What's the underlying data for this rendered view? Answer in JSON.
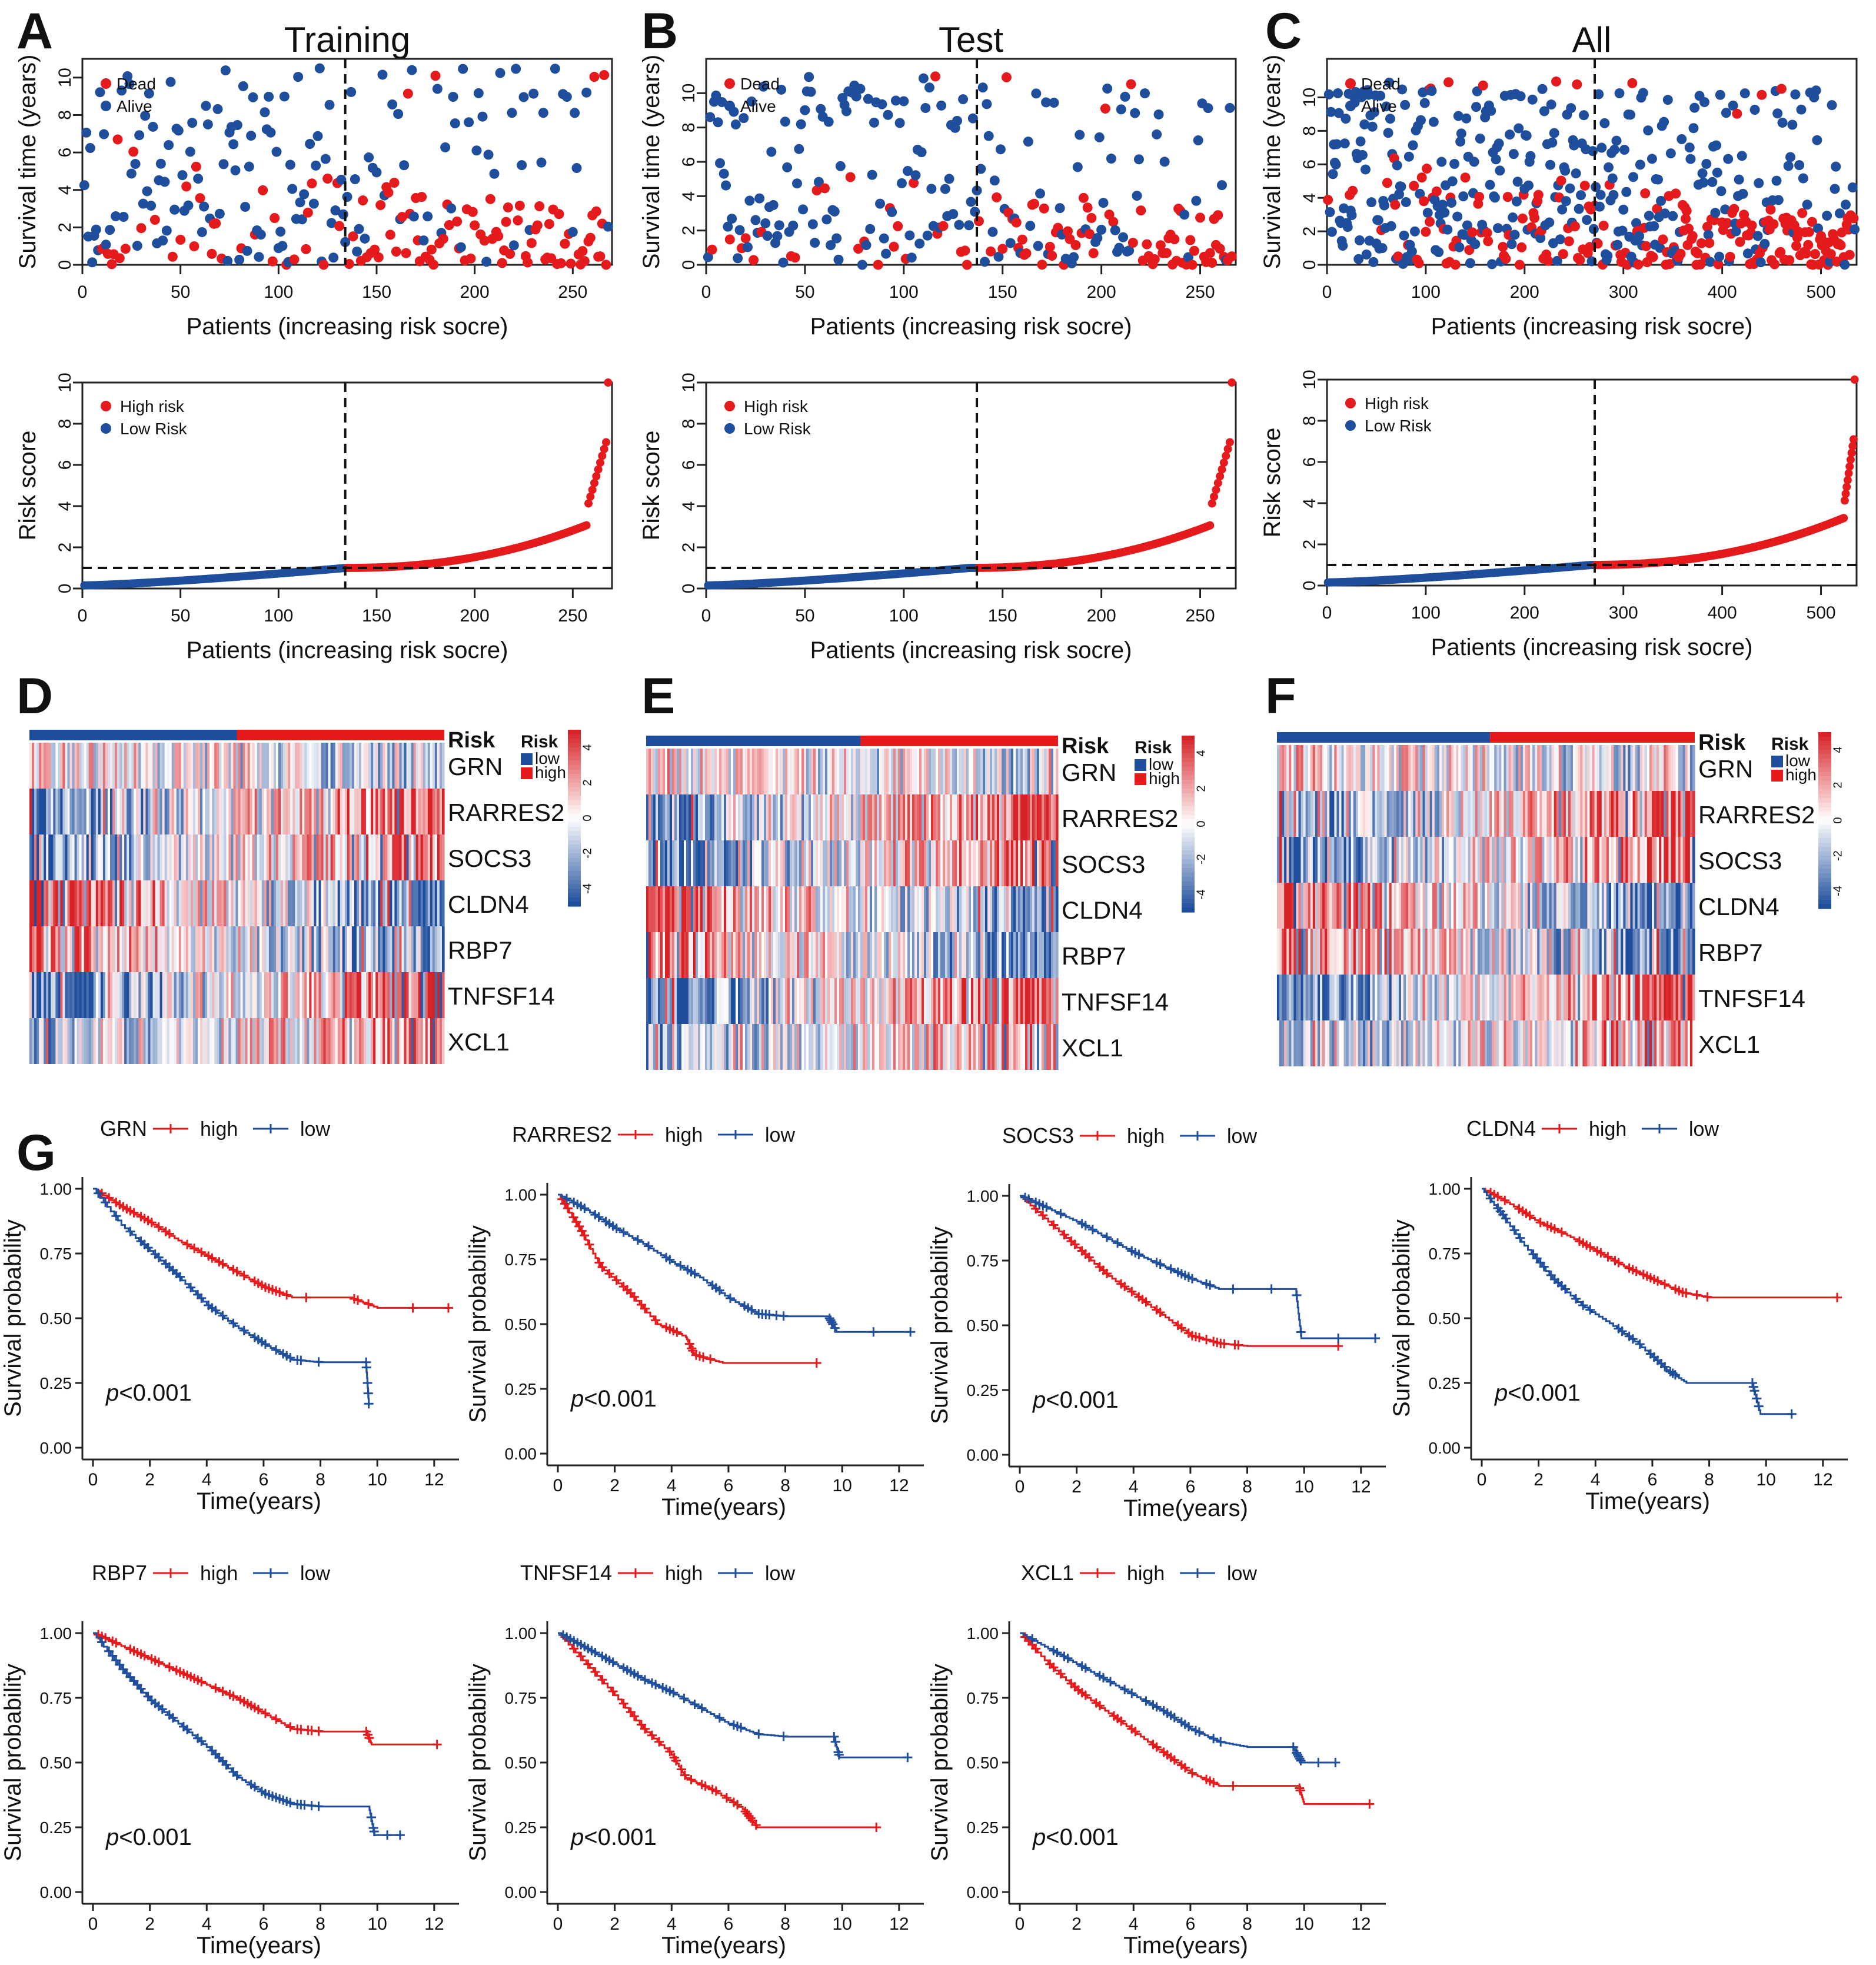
{
  "colors": {
    "high": "#e41a1c",
    "low": "#1f4e9c",
    "axis": "#222222",
    "dash": "#111111"
  },
  "panel_letters": [
    "A",
    "B",
    "C",
    "D",
    "E",
    "F",
    "G"
  ],
  "common": {
    "surv_ylabel": "Survival time (years)",
    "risk_ylabel": "Risk score",
    "xlabel": "Patients (increasing risk socre)",
    "dead": "Dead",
    "alive": "Alive",
    "high_risk": "High risk",
    "low_risk": "Low Risk",
    "heat_risk_label": "Risk",
    "heat_legend_title": "Risk",
    "heat_legend_low": "low",
    "heat_legend_high": "high",
    "km_ylabel": "Survival probability",
    "km_xlabel": "Time(years)",
    "km_high": "high",
    "km_low": "low",
    "pvalue_p": "p",
    "pvalue_rest": "<0.001"
  },
  "genes": [
    "GRN",
    "RARRES2",
    "SOCS3",
    "CLDN4",
    "RBP7",
    "TNFSF14",
    "XCL1"
  ],
  "chart_data": [
    {
      "type": "scatter",
      "panel": "A",
      "title": "Training",
      "n": 268,
      "cutoff": 134,
      "xlabel": "Patients (increasing risk socre)",
      "ylabel": "Survival time (years)",
      "xticks": [
        0,
        50,
        100,
        150,
        200,
        250
      ],
      "yticks": [
        0,
        2,
        4,
        6,
        8,
        10
      ],
      "xlim": [
        0,
        270
      ],
      "ylim": [
        0,
        11
      ],
      "legend": [
        "Dead",
        "Alive"
      ]
    },
    {
      "type": "scatter",
      "panel": "B",
      "title": "Test",
      "n": 266,
      "cutoff": 137,
      "xlabel": "Patients (increasing risk socre)",
      "ylabel": "Survival time (years)",
      "xticks": [
        0,
        50,
        100,
        150,
        200,
        250
      ],
      "yticks": [
        0,
        2,
        4,
        6,
        8,
        10
      ],
      "xlim": [
        0,
        268
      ],
      "ylim": [
        0,
        12
      ],
      "legend": [
        "Dead",
        "Alive"
      ]
    },
    {
      "type": "scatter",
      "panel": "C",
      "title": "All",
      "n": 534,
      "cutoff": 271,
      "xlabel": "Patients (increasing risk socre)",
      "ylabel": "Survival time (years)",
      "xticks": [
        0,
        100,
        200,
        300,
        400,
        500
      ],
      "yticks": [
        0,
        2,
        4,
        6,
        8,
        10
      ],
      "xlim": [
        0,
        536
      ],
      "ylim": [
        0,
        12.3
      ],
      "legend": [
        "Dead",
        "Alive"
      ]
    },
    {
      "type": "scatter",
      "panel": "A-risk",
      "n": 268,
      "cutoff": 134,
      "threshold": 1,
      "max_score": 10,
      "xlabel": "Patients (increasing risk socre)",
      "ylabel": "Risk score",
      "xticks": [
        0,
        50,
        100,
        150,
        200,
        250
      ],
      "yticks": [
        0,
        2,
        4,
        6,
        8,
        10
      ],
      "xlim": [
        0,
        270
      ],
      "ylim": [
        0,
        10
      ],
      "legend": [
        "High risk",
        "Low Risk"
      ]
    },
    {
      "type": "scatter",
      "panel": "B-risk",
      "n": 266,
      "cutoff": 137,
      "threshold": 1,
      "max_score": 10,
      "xlabel": "Patients (increasing risk socre)",
      "ylabel": "Risk score",
      "xticks": [
        0,
        50,
        100,
        150,
        200,
        250
      ],
      "yticks": [
        0,
        2,
        4,
        6,
        8,
        10
      ],
      "xlim": [
        0,
        268
      ],
      "ylim": [
        0,
        10
      ],
      "legend": [
        "High risk",
        "Low Risk"
      ]
    },
    {
      "type": "scatter",
      "panel": "C-risk",
      "n": 534,
      "cutoff": 271,
      "threshold": 1,
      "max_score": 10,
      "xlabel": "Patients (increasing risk socre)",
      "ylabel": "Risk score",
      "xticks": [
        0,
        100,
        200,
        300,
        400,
        500
      ],
      "yticks": [
        0,
        2,
        4,
        6,
        8,
        10
      ],
      "xlim": [
        0,
        536
      ],
      "ylim": [
        0,
        10
      ],
      "legend": [
        "High risk",
        "Low Risk"
      ]
    },
    {
      "type": "heatmap",
      "panel": "D",
      "rows": [
        "GRN",
        "RARRES2",
        "SOCS3",
        "CLDN4",
        "RBP7",
        "TNFSF14",
        "XCL1"
      ],
      "low_fraction": 0.5,
      "colorbar_ticks": [
        4,
        2,
        0,
        -2,
        -4
      ]
    },
    {
      "type": "heatmap",
      "panel": "E",
      "rows": [
        "GRN",
        "RARRES2",
        "SOCS3",
        "CLDN4",
        "RBP7",
        "TNFSF14",
        "XCL1"
      ],
      "low_fraction": 0.52,
      "colorbar_ticks": [
        4,
        2,
        0,
        -2,
        -4
      ]
    },
    {
      "type": "heatmap",
      "panel": "F",
      "rows": [
        "GRN",
        "RARRES2",
        "SOCS3",
        "CLDN4",
        "RBP7",
        "TNFSF14",
        "XCL1"
      ],
      "low_fraction": 0.51,
      "colorbar_ticks": [
        4,
        2,
        0,
        -2,
        -4
      ]
    },
    {
      "type": "line",
      "panel": "G",
      "gene": "GRN",
      "pvalue": "p<0.001",
      "xticks": [
        0,
        2,
        4,
        6,
        8,
        10,
        12
      ],
      "yticks": [
        0,
        0.25,
        0.5,
        0.75,
        1
      ],
      "xlim": [
        0,
        12.5
      ],
      "ylim": [
        0,
        1
      ],
      "series": [
        {
          "name": "high",
          "points": [
            [
              0,
              1
            ],
            [
              1,
              0.93
            ],
            [
              2,
              0.87
            ],
            [
              3,
              0.8
            ],
            [
              4,
              0.74
            ],
            [
              5,
              0.68
            ],
            [
              6,
              0.62
            ],
            [
              7,
              0.58
            ],
            [
              8,
              0.58
            ],
            [
              9,
              0.58
            ],
            [
              10,
              0.54
            ],
            [
              12.5,
              0.54
            ]
          ]
        },
        {
          "name": "low",
          "points": [
            [
              0,
              1
            ],
            [
              1,
              0.86
            ],
            [
              2,
              0.76
            ],
            [
              3,
              0.66
            ],
            [
              4,
              0.55
            ],
            [
              5,
              0.47
            ],
            [
              6,
              0.4
            ],
            [
              7,
              0.34
            ],
            [
              8,
              0.33
            ],
            [
              9.6,
              0.33
            ],
            [
              9.7,
              0.17
            ]
          ]
        }
      ]
    },
    {
      "type": "line",
      "panel": "G",
      "gene": "RARRES2",
      "pvalue": "p<0.001",
      "xticks": [
        0,
        2,
        4,
        6,
        8,
        10,
        12
      ],
      "yticks": [
        0,
        0.25,
        0.5,
        0.75,
        1
      ],
      "xlim": [
        0,
        12.5
      ],
      "ylim": [
        0,
        1
      ],
      "series": [
        {
          "name": "high",
          "points": [
            [
              0,
              1
            ],
            [
              0.8,
              0.86
            ],
            [
              1.5,
              0.72
            ],
            [
              2.5,
              0.62
            ],
            [
              3.5,
              0.5
            ],
            [
              4.5,
              0.45
            ],
            [
              4.8,
              0.38
            ],
            [
              5.8,
              0.35
            ],
            [
              9.1,
              0.35
            ]
          ]
        },
        {
          "name": "low",
          "points": [
            [
              0,
              1
            ],
            [
              1,
              0.94
            ],
            [
              2,
              0.87
            ],
            [
              3,
              0.81
            ],
            [
              4,
              0.74
            ],
            [
              5,
              0.68
            ],
            [
              6,
              0.6
            ],
            [
              7,
              0.54
            ],
            [
              8,
              0.53
            ],
            [
              9.5,
              0.53
            ],
            [
              9.8,
              0.47
            ],
            [
              12.4,
              0.47
            ]
          ]
        }
      ]
    },
    {
      "type": "line",
      "panel": "G",
      "gene": "SOCS3",
      "pvalue": "p<0.001",
      "xticks": [
        0,
        2,
        4,
        6,
        8,
        10,
        12
      ],
      "yticks": [
        0,
        0.25,
        0.5,
        0.75,
        1
      ],
      "xlim": [
        0,
        12.5
      ],
      "ylim": [
        0,
        1
      ],
      "series": [
        {
          "name": "high",
          "points": [
            [
              0,
              1
            ],
            [
              1,
              0.9
            ],
            [
              2,
              0.8
            ],
            [
              3,
              0.7
            ],
            [
              4,
              0.62
            ],
            [
              5,
              0.54
            ],
            [
              6,
              0.46
            ],
            [
              7,
              0.43
            ],
            [
              8,
              0.42
            ],
            [
              11.2,
              0.42
            ]
          ]
        },
        {
          "name": "low",
          "points": [
            [
              0,
              1
            ],
            [
              1,
              0.95
            ],
            [
              2,
              0.9
            ],
            [
              3,
              0.84
            ],
            [
              4,
              0.78
            ],
            [
              5,
              0.73
            ],
            [
              6,
              0.68
            ],
            [
              7,
              0.64
            ],
            [
              8,
              0.64
            ],
            [
              9.7,
              0.64
            ],
            [
              9.9,
              0.45
            ],
            [
              12.5,
              0.45
            ]
          ]
        }
      ]
    },
    {
      "type": "line",
      "panel": "G",
      "gene": "CLDN4",
      "pvalue": "p<0.001",
      "xticks": [
        0,
        2,
        4,
        6,
        8,
        10,
        12
      ],
      "yticks": [
        0,
        0.25,
        0.5,
        0.75,
        1
      ],
      "xlim": [
        0,
        12.5
      ],
      "ylim": [
        0,
        1
      ],
      "series": [
        {
          "name": "high",
          "points": [
            [
              0,
              1
            ],
            [
              1,
              0.94
            ],
            [
              2,
              0.87
            ],
            [
              3,
              0.82
            ],
            [
              4,
              0.76
            ],
            [
              5,
              0.7
            ],
            [
              6,
              0.65
            ],
            [
              7,
              0.6
            ],
            [
              8,
              0.58
            ],
            [
              9,
              0.58
            ],
            [
              12.5,
              0.58
            ]
          ]
        },
        {
          "name": "low",
          "points": [
            [
              0,
              1
            ],
            [
              0.7,
              0.9
            ],
            [
              1.5,
              0.78
            ],
            [
              2.5,
              0.65
            ],
            [
              3.5,
              0.55
            ],
            [
              4.5,
              0.48
            ],
            [
              5.5,
              0.4
            ],
            [
              6.5,
              0.3
            ],
            [
              7.2,
              0.25
            ],
            [
              9.5,
              0.25
            ],
            [
              9.8,
              0.13
            ],
            [
              10.9,
              0.13
            ]
          ]
        }
      ]
    },
    {
      "type": "line",
      "panel": "G",
      "gene": "RBP7",
      "pvalue": "p<0.001",
      "xticks": [
        0,
        2,
        4,
        6,
        8,
        10,
        12
      ],
      "yticks": [
        0,
        0.25,
        0.5,
        0.75,
        1
      ],
      "xlim": [
        0,
        12.5
      ],
      "ylim": [
        0,
        1
      ],
      "series": [
        {
          "name": "high",
          "points": [
            [
              0,
              1
            ],
            [
              1,
              0.95
            ],
            [
              2,
              0.9
            ],
            [
              3,
              0.85
            ],
            [
              4,
              0.8
            ],
            [
              5,
              0.75
            ],
            [
              6,
              0.69
            ],
            [
              7,
              0.63
            ],
            [
              8,
              0.62
            ],
            [
              9.6,
              0.62
            ],
            [
              9.8,
              0.57
            ],
            [
              12.1,
              0.57
            ]
          ]
        },
        {
          "name": "low",
          "points": [
            [
              0,
              1
            ],
            [
              1,
              0.86
            ],
            [
              2,
              0.74
            ],
            [
              3,
              0.65
            ],
            [
              4,
              0.56
            ],
            [
              5,
              0.45
            ],
            [
              6,
              0.38
            ],
            [
              7,
              0.34
            ],
            [
              8,
              0.33
            ],
            [
              9.7,
              0.33
            ],
            [
              9.9,
              0.22
            ],
            [
              10.8,
              0.22
            ]
          ]
        }
      ]
    },
    {
      "type": "line",
      "panel": "G",
      "gene": "TNFSF14",
      "pvalue": "p<0.001",
      "xticks": [
        0,
        2,
        4,
        6,
        8,
        10,
        12
      ],
      "yticks": [
        0,
        0.25,
        0.5,
        0.75,
        1
      ],
      "xlim": [
        0,
        12.5
      ],
      "ylim": [
        0,
        1
      ],
      "series": [
        {
          "name": "high",
          "points": [
            [
              0,
              1
            ],
            [
              1,
              0.88
            ],
            [
              2,
              0.76
            ],
            [
              3,
              0.63
            ],
            [
              4,
              0.53
            ],
            [
              4.5,
              0.44
            ],
            [
              5.5,
              0.39
            ],
            [
              6.5,
              0.32
            ],
            [
              7,
              0.25
            ],
            [
              11.2,
              0.25
            ]
          ]
        },
        {
          "name": "low",
          "points": [
            [
              0,
              1
            ],
            [
              1,
              0.94
            ],
            [
              2,
              0.88
            ],
            [
              3,
              0.82
            ],
            [
              4,
              0.77
            ],
            [
              5,
              0.71
            ],
            [
              6,
              0.65
            ],
            [
              7,
              0.61
            ],
            [
              8,
              0.6
            ],
            [
              9.7,
              0.6
            ],
            [
              9.9,
              0.52
            ],
            [
              12.3,
              0.52
            ]
          ]
        }
      ]
    },
    {
      "type": "line",
      "panel": "G",
      "gene": "XCL1",
      "pvalue": "p<0.001",
      "xticks": [
        0,
        2,
        4,
        6,
        8,
        10,
        12
      ],
      "yticks": [
        0,
        0.25,
        0.5,
        0.75,
        1
      ],
      "xlim": [
        0,
        12.5
      ],
      "ylim": [
        0,
        1
      ],
      "series": [
        {
          "name": "high",
          "points": [
            [
              0,
              1
            ],
            [
              1,
              0.88
            ],
            [
              2,
              0.78
            ],
            [
              3,
              0.7
            ],
            [
              4,
              0.62
            ],
            [
              5,
              0.54
            ],
            [
              6,
              0.46
            ],
            [
              7,
              0.41
            ],
            [
              8,
              0.41
            ],
            [
              9.8,
              0.41
            ],
            [
              10,
              0.34
            ],
            [
              12.3,
              0.34
            ]
          ]
        },
        {
          "name": "low",
          "points": [
            [
              0,
              1
            ],
            [
              1,
              0.94
            ],
            [
              2,
              0.88
            ],
            [
              3,
              0.82
            ],
            [
              4,
              0.76
            ],
            [
              5,
              0.7
            ],
            [
              6,
              0.63
            ],
            [
              7,
              0.58
            ],
            [
              8,
              0.56
            ],
            [
              9.6,
              0.56
            ],
            [
              9.9,
              0.5
            ],
            [
              11.1,
              0.5
            ]
          ]
        }
      ]
    }
  ]
}
